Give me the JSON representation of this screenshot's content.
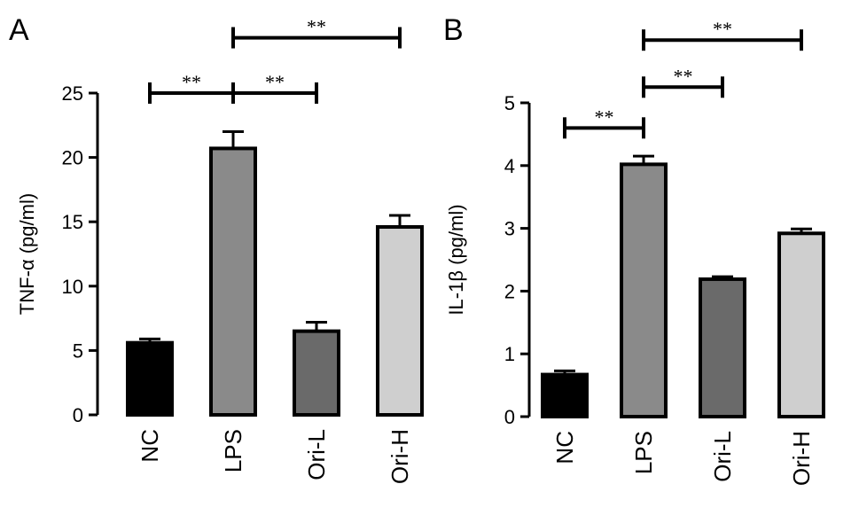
{
  "chart_data": [
    {
      "panel": "A",
      "type": "bar",
      "categories": [
        "NC",
        "LPS",
        "Ori-L",
        "Ori-H"
      ],
      "values": [
        5.6,
        20.7,
        6.5,
        14.6
      ],
      "errors": [
        0.3,
        1.3,
        0.7,
        0.9
      ],
      "colors": [
        "#000000",
        "#8a8a8a",
        "#6a6a6a",
        "#cfcfcf"
      ],
      "ylabel": "TNF-α (pg/ml)",
      "ylim": [
        0,
        25
      ],
      "yticks": [
        0,
        5,
        10,
        15,
        20,
        25
      ],
      "significance": [
        {
          "from": 0,
          "to": 1,
          "label": "**",
          "y": 25.0
        },
        {
          "from": 1,
          "to": 2,
          "label": "**",
          "y": 25.0
        },
        {
          "from": 1,
          "to": 3,
          "label": "**",
          "y": 29.3
        }
      ]
    },
    {
      "panel": "B",
      "type": "bar",
      "categories": [
        "NC",
        "LPS",
        "Ori-L",
        "Ori-H"
      ],
      "values": [
        0.67,
        4.02,
        2.19,
        2.92
      ],
      "errors": [
        0.06,
        0.13,
        0.04,
        0.07
      ],
      "colors": [
        "#000000",
        "#8a8a8a",
        "#6a6a6a",
        "#cfcfcf"
      ],
      "ylabel": "IL-1β (pg/ml)",
      "ylim": [
        0,
        5
      ],
      "yticks": [
        0,
        1,
        2,
        3,
        4,
        5
      ],
      "significance": [
        {
          "from": 0,
          "to": 1,
          "label": "**",
          "y": 4.6
        },
        {
          "from": 1,
          "to": 2,
          "label": "**",
          "y": 5.25
        },
        {
          "from": 1,
          "to": 3,
          "label": "**",
          "y": 6.0
        }
      ]
    }
  ]
}
